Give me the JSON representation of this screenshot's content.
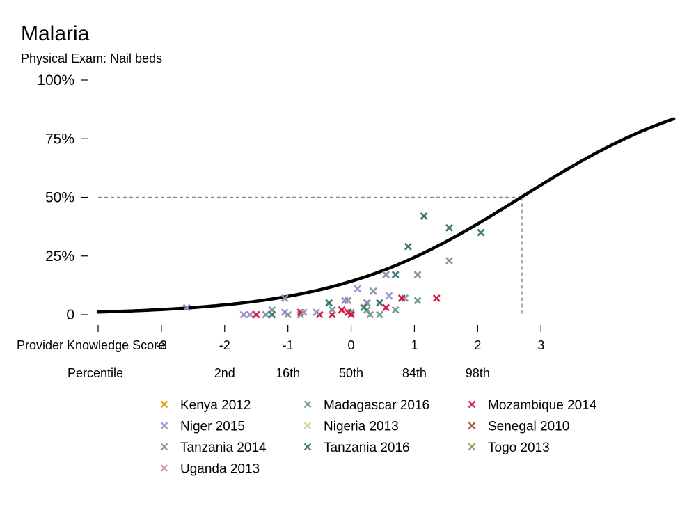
{
  "chart_data": {
    "type": "scatter",
    "title": "Malaria",
    "subtitle": "Physical Exam: Nail beds",
    "xlabel": "Provider Knowledge Score",
    "percentile_label": "Percentile",
    "xlim": [
      -4,
      5
    ],
    "ylim": [
      0,
      100
    ],
    "y_ticks": [
      {
        "value": 100,
        "label": "100%"
      },
      {
        "value": 75,
        "label": "75%"
      },
      {
        "value": 50,
        "label": "50%"
      },
      {
        "value": 25,
        "label": "25%"
      },
      {
        "value": 0,
        "label": "0"
      }
    ],
    "x_ticks": [
      {
        "value": -3,
        "label": "-3"
      },
      {
        "value": -2,
        "label": "-2"
      },
      {
        "value": -1,
        "label": "-1"
      },
      {
        "value": 0,
        "label": "0"
      },
      {
        "value": 1,
        "label": "1"
      },
      {
        "value": 2,
        "label": "2"
      },
      {
        "value": 3,
        "label": "3"
      }
    ],
    "percentile_ticks": [
      {
        "value": -2,
        "label": "2nd"
      },
      {
        "value": -1,
        "label": "16th"
      },
      {
        "value": 0,
        "label": "50th"
      },
      {
        "value": 1,
        "label": "84th"
      },
      {
        "value": 2,
        "label": "98th"
      }
    ],
    "curve": {
      "intercept": -1.8,
      "slope": 0.67,
      "x_range": [
        -4,
        5.1
      ],
      "color": "#000000"
    },
    "reference": {
      "x": 2.7,
      "y": 50
    },
    "series": [
      {
        "name": "Kenya 2012",
        "color": "#E69F00",
        "points": []
      },
      {
        "name": "Madagascar 2016",
        "color": "#7A9E8E",
        "points": [
          [
            -1.0,
            0
          ],
          [
            -0.8,
            0
          ],
          [
            0.0,
            1
          ],
          [
            0.25,
            2
          ],
          [
            0.3,
            0
          ],
          [
            0.45,
            0
          ],
          [
            0.7,
            2
          ],
          [
            0.85,
            7
          ],
          [
            1.05,
            6
          ]
        ]
      },
      {
        "name": "Mozambique 2014",
        "color": "#D6173F",
        "points": [
          [
            -1.5,
            0
          ],
          [
            -0.8,
            1
          ],
          [
            -0.5,
            0
          ],
          [
            -0.3,
            0
          ],
          [
            -0.15,
            2
          ],
          [
            -0.05,
            1
          ],
          [
            0.0,
            0
          ],
          [
            0.25,
            5
          ],
          [
            0.55,
            3
          ],
          [
            0.8,
            7
          ],
          [
            1.35,
            7
          ]
        ]
      },
      {
        "name": "Niger 2015",
        "color": "#9B93C9",
        "points": [
          [
            -2.6,
            3
          ],
          [
            -1.7,
            0
          ],
          [
            -1.6,
            0
          ],
          [
            -1.05,
            1
          ],
          [
            -0.75,
            1
          ],
          [
            -0.55,
            1
          ],
          [
            -0.1,
            6
          ],
          [
            0.1,
            11
          ],
          [
            0.6,
            8
          ]
        ]
      },
      {
        "name": "Nigeria 2013",
        "color": "#D9CE8F",
        "points": []
      },
      {
        "name": "Senegal 2010",
        "color": "#A64E2F",
        "points": []
      },
      {
        "name": "Tanzania 2014",
        "color": "#8694A8",
        "points": [
          [
            -1.35,
            0
          ],
          [
            -1.25,
            2
          ],
          [
            -1.05,
            7
          ],
          [
            -0.3,
            2
          ],
          [
            -0.05,
            6
          ],
          [
            0.25,
            5
          ],
          [
            0.35,
            10
          ],
          [
            0.55,
            17
          ],
          [
            1.05,
            17
          ],
          [
            1.55,
            23
          ]
        ]
      },
      {
        "name": "Tanzania 2016",
        "color": "#3C7A6E",
        "points": [
          [
            -1.25,
            0
          ],
          [
            -0.35,
            5
          ],
          [
            0.2,
            3
          ],
          [
            0.45,
            5
          ],
          [
            0.7,
            17
          ],
          [
            0.9,
            29
          ],
          [
            1.15,
            42
          ],
          [
            1.55,
            37
          ],
          [
            2.05,
            35
          ]
        ]
      },
      {
        "name": "Togo 2013",
        "color": "#A38B5A",
        "points": []
      },
      {
        "name": "Uganda 2013",
        "color": "#C9A59E",
        "points": []
      }
    ]
  }
}
